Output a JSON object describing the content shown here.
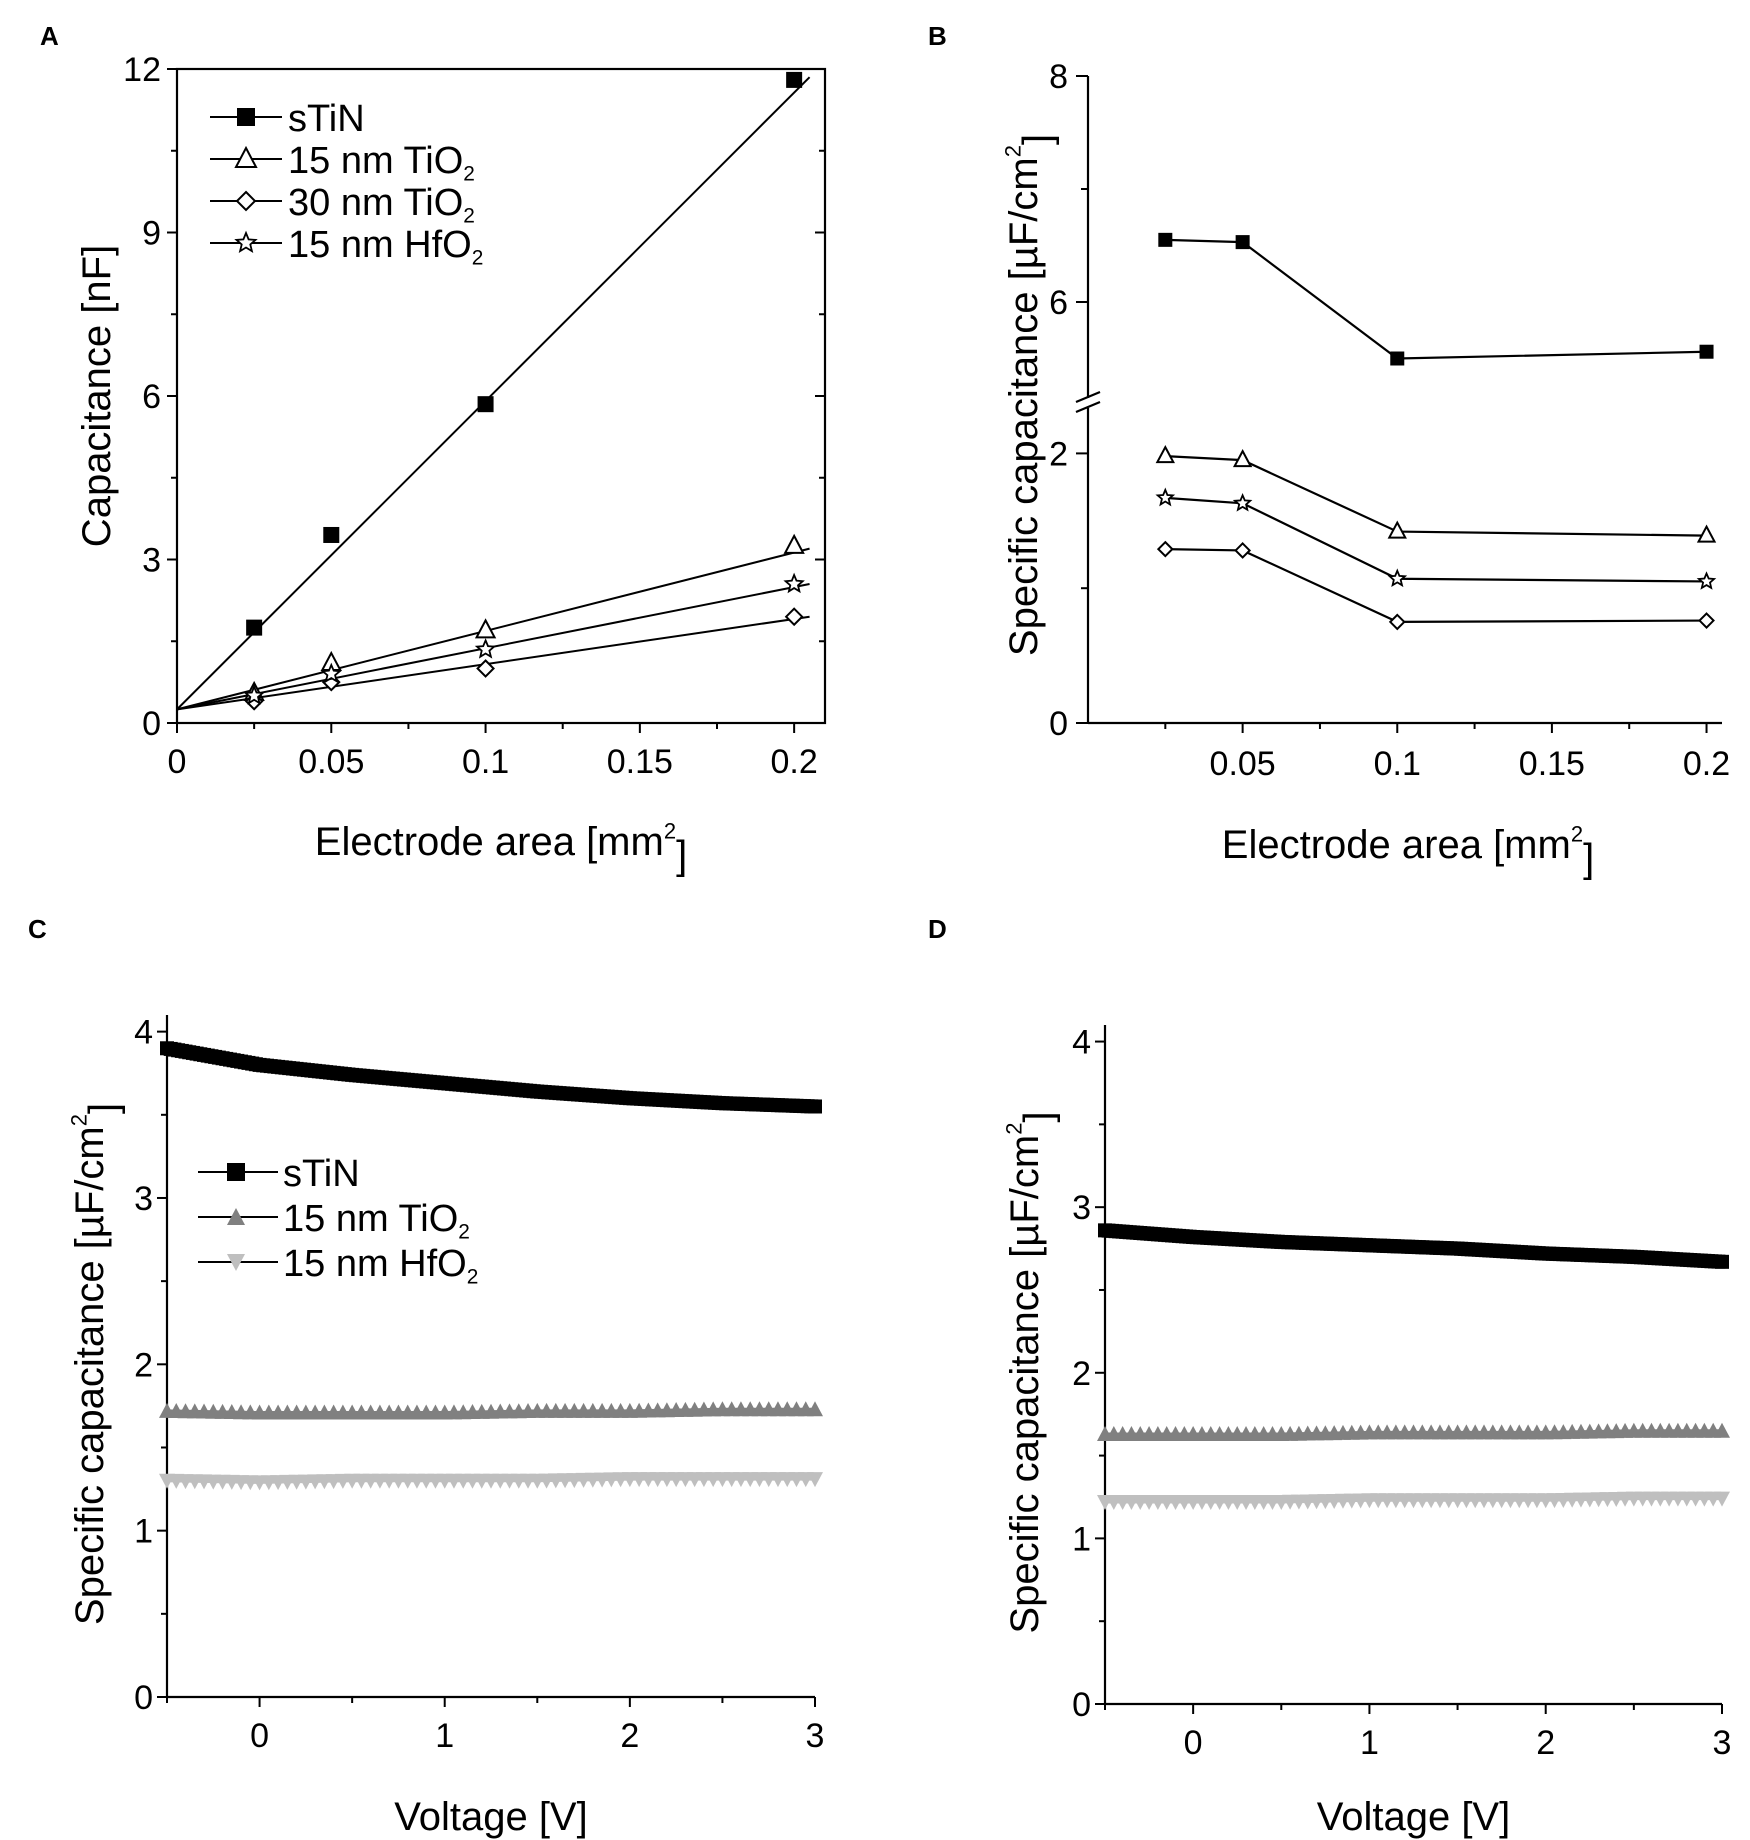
{
  "chart_data": [
    {
      "panel": "A",
      "type": "scatter",
      "xlabel": "Electrode area  [mm²]",
      "ylabel": "Capacitance [nF]",
      "xlim": [
        0,
        0.21
      ],
      "ylim": [
        0,
        12
      ],
      "xticks": [
        0,
        0.05,
        0.1,
        0.15,
        0.2
      ],
      "xtick_labels": [
        "0",
        "0.05",
        "0.1",
        "0.15",
        "0.2"
      ],
      "yticks": [
        0,
        3,
        6,
        9,
        12
      ],
      "ytick_labels": [
        "0",
        "3",
        "6",
        "9",
        "12"
      ],
      "legend_position": "top-left",
      "series": [
        {
          "name": "sTiN",
          "marker": "filled-square",
          "x": [
            0.025,
            0.05,
            0.1,
            0.2
          ],
          "y": [
            1.75,
            3.45,
            5.85,
            11.8
          ],
          "fit": [
            [
              0,
              0.25
            ],
            [
              0.205,
              11.85
            ]
          ]
        },
        {
          "name": "15 nm TiO₂",
          "marker": "open-triangle",
          "x": [
            0.025,
            0.05,
            0.1,
            0.2
          ],
          "y": [
            0.55,
            1.1,
            1.7,
            3.25
          ],
          "fit": [
            [
              0,
              0.25
            ],
            [
              0.205,
              3.2
            ]
          ]
        },
        {
          "name": "30 nm TiO₂",
          "marker": "open-diamond",
          "x": [
            0.025,
            0.05,
            0.1,
            0.2
          ],
          "y": [
            0.4,
            0.75,
            1.0,
            1.95
          ],
          "fit": [
            [
              0,
              0.25
            ],
            [
              0.205,
              1.95
            ]
          ]
        },
        {
          "name": "15 nm HfO₂",
          "marker": "star",
          "x": [
            0.025,
            0.05,
            0.1,
            0.2
          ],
          "y": [
            0.5,
            0.9,
            1.35,
            2.55
          ],
          "fit": [
            [
              0,
              0.25
            ],
            [
              0.205,
              2.55
            ]
          ]
        }
      ]
    },
    {
      "panel": "B",
      "type": "line",
      "xlabel": "Electrode area  [mm²]",
      "ylabel": "Specific capacitance [µF/cm²]",
      "xlim": [
        0,
        0.205
      ],
      "axis_break": "between 2.5 and 5 on y",
      "xticks": [
        0.05,
        0.1,
        0.15,
        0.2
      ],
      "xtick_labels": [
        "0.05",
        "0.1",
        "0.15",
        "0.2"
      ],
      "yticks": [
        0,
        2,
        6,
        8
      ],
      "ytick_labels": [
        "0",
        "2",
        "6",
        "8"
      ],
      "series": [
        {
          "name": "sTiN",
          "marker": "filled-square",
          "x": [
            0.025,
            0.05,
            0.1,
            0.2
          ],
          "y": [
            6.55,
            6.53,
            5.5,
            5.56
          ]
        },
        {
          "name": "15 nm TiO₂",
          "marker": "open-triangle",
          "x": [
            0.025,
            0.05,
            0.1,
            0.2
          ],
          "y": [
            1.98,
            1.95,
            1.42,
            1.39
          ]
        },
        {
          "name": "15 nm HfO₂",
          "marker": "star",
          "x": [
            0.025,
            0.05,
            0.1,
            0.2
          ],
          "y": [
            1.67,
            1.63,
            1.07,
            1.05
          ]
        },
        {
          "name": "30 nm TiO₂",
          "marker": "open-diamond",
          "x": [
            0.025,
            0.05,
            0.1,
            0.2
          ],
          "y": [
            1.29,
            1.28,
            0.75,
            0.76
          ]
        }
      ]
    },
    {
      "panel": "C",
      "type": "line",
      "xlabel": "Voltage [V]",
      "ylabel": "Specific capacitance [µF/cm²]",
      "xlim": [
        -0.5,
        3
      ],
      "ylim": [
        0,
        4.1
      ],
      "xticks": [
        0,
        1,
        2,
        3
      ],
      "xtick_labels": [
        "0",
        "1",
        "2",
        "3"
      ],
      "yticks": [
        0,
        1,
        2,
        3,
        4
      ],
      "ytick_labels": [
        "0",
        "1",
        "2",
        "3",
        "4"
      ],
      "legend_position": "center-left",
      "series": [
        {
          "name": "sTiN",
          "marker": "filled-square",
          "color": "#000000",
          "x": [
            -0.5,
            0,
            0.5,
            1,
            1.5,
            2,
            2.5,
            3
          ],
          "y": [
            3.9,
            3.8,
            3.74,
            3.69,
            3.64,
            3.6,
            3.57,
            3.55
          ]
        },
        {
          "name": "15 nm TiO₂",
          "marker": "filled-triangle-up",
          "color": "#808080",
          "x": [
            -0.5,
            0,
            0.5,
            1,
            1.5,
            2,
            2.5,
            3
          ],
          "y": [
            1.72,
            1.71,
            1.71,
            1.71,
            1.72,
            1.72,
            1.73,
            1.73
          ]
        },
        {
          "name": "15 nm HfO₂",
          "marker": "filled-triangle-down",
          "color": "#bfbfbf",
          "x": [
            -0.5,
            0,
            0.5,
            1,
            1.5,
            2,
            2.5,
            3
          ],
          "y": [
            1.3,
            1.29,
            1.3,
            1.3,
            1.3,
            1.31,
            1.31,
            1.31
          ]
        }
      ]
    },
    {
      "panel": "D",
      "type": "line",
      "xlabel": "Voltage [V]",
      "ylabel": "Specific capacitance [µF/cm²]",
      "xlim": [
        -0.5,
        3
      ],
      "ylim": [
        0,
        4.1
      ],
      "xticks": [
        0,
        1,
        2,
        3
      ],
      "xtick_labels": [
        "0",
        "1",
        "2",
        "3"
      ],
      "yticks": [
        0,
        1,
        2,
        3,
        4
      ],
      "ytick_labels": [
        "0",
        "1",
        "2",
        "3",
        "4"
      ],
      "series": [
        {
          "name": "sTiN",
          "marker": "filled-square",
          "color": "#000000",
          "x": [
            -0.5,
            0,
            0.5,
            1,
            1.5,
            2,
            2.5,
            3
          ],
          "y": [
            2.86,
            2.82,
            2.79,
            2.77,
            2.75,
            2.72,
            2.7,
            2.67
          ]
        },
        {
          "name": "15 nm TiO₂",
          "marker": "filled-triangle-up",
          "color": "#808080",
          "x": [
            -0.5,
            0,
            0.5,
            1,
            1.5,
            2,
            2.5,
            3
          ],
          "y": [
            1.63,
            1.63,
            1.63,
            1.64,
            1.64,
            1.64,
            1.65,
            1.65
          ]
        },
        {
          "name": "15 nm HfO₂",
          "marker": "filled-triangle-down",
          "color": "#bfbfbf",
          "x": [
            -0.5,
            0,
            0.5,
            1,
            1.5,
            2,
            2.5,
            3
          ],
          "y": [
            1.22,
            1.22,
            1.22,
            1.23,
            1.23,
            1.23,
            1.24,
            1.24
          ]
        }
      ]
    }
  ]
}
